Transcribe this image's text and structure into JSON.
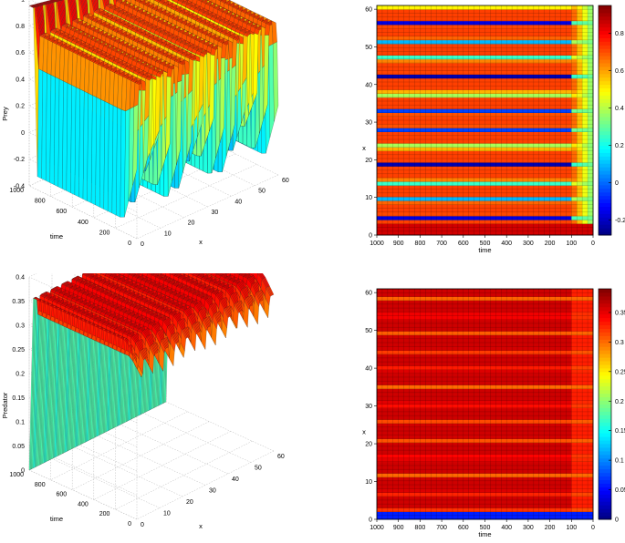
{
  "chart_data": [
    {
      "type": "surface3d",
      "zlabel": "Prey",
      "xlabel": "x",
      "ylabel": "time",
      "x_ticks": [
        "0",
        "10",
        "20",
        "30",
        "40",
        "50",
        "60"
      ],
      "time_ticks": [
        "0",
        "200",
        "400",
        "600",
        "800",
        "1000"
      ],
      "z_ticks": [
        "-0.4",
        "-0.2",
        "0",
        "0.2",
        "0.4",
        "0.6",
        "0.8",
        "1"
      ],
      "x_range": [
        0,
        60
      ],
      "time_range": [
        0,
        1000
      ],
      "z_range": [
        -0.4,
        1
      ],
      "stripes": 13,
      "plateau_value": 0.75,
      "trough_value": -0.3,
      "initial_value": 0.95,
      "colormap": "jet",
      "grid": true
    },
    {
      "type": "heatmap",
      "ylabel": "x",
      "xlabel": "time",
      "x_ticks": [
        "1000",
        "900",
        "800",
        "700",
        "600",
        "500",
        "400",
        "300",
        "200",
        "100",
        "0"
      ],
      "y_ticks": [
        "0",
        "10",
        "20",
        "30",
        "40",
        "50",
        "60"
      ],
      "colorbar_ticks": [
        "-0.2",
        "0",
        "0.2",
        "0.4",
        "0.6",
        "0.8"
      ],
      "colorbar_range": [
        -0.28,
        0.95
      ],
      "stripes": 13,
      "colormap": "jet",
      "grid": true
    },
    {
      "type": "surface3d",
      "zlabel": "Predator",
      "xlabel": "x",
      "ylabel": "time",
      "x_ticks": [
        "0",
        "10",
        "20",
        "30",
        "40",
        "50",
        "60"
      ],
      "time_ticks": [
        "0",
        "200",
        "400",
        "600",
        "800",
        "1000"
      ],
      "z_ticks": [
        "0",
        "0.05",
        "0.1",
        "0.15",
        "0.2",
        "0.25",
        "0.3",
        "0.35",
        "0.4"
      ],
      "x_range": [
        0,
        60
      ],
      "time_range": [
        0,
        1000
      ],
      "z_range": [
        0,
        0.4
      ],
      "stripes": 13,
      "plateau_value": 0.36,
      "trough_value": 0.31,
      "colormap": "jet",
      "grid": true
    },
    {
      "type": "heatmap",
      "ylabel": "x",
      "xlabel": "time",
      "x_ticks": [
        "1000",
        "900",
        "800",
        "700",
        "600",
        "500",
        "400",
        "300",
        "200",
        "100",
        "0"
      ],
      "y_ticks": [
        "0",
        "10",
        "20",
        "30",
        "40",
        "50",
        "60"
      ],
      "colorbar_ticks": [
        "0",
        "0.05",
        "0.1",
        "0.15",
        "0.2",
        "0.25",
        "0.3",
        "0.35"
      ],
      "colorbar_range": [
        0,
        0.39
      ],
      "stripes": 13,
      "colormap": "jet",
      "grid": true
    }
  ]
}
